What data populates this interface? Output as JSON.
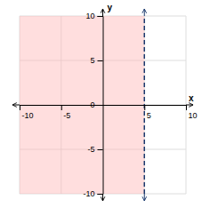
{
  "chart_data": {
    "type": "line",
    "xlabel": "x",
    "ylabel": "y",
    "xlim": [
      -10,
      10
    ],
    "ylim": [
      -10,
      10
    ],
    "xticks": [
      -10,
      -5,
      5,
      10
    ],
    "yticks": [
      -10,
      -5,
      0,
      5,
      10
    ],
    "grid": true,
    "x": [
      5,
      5
    ],
    "values": [
      -10,
      10
    ],
    "color": "#1c3a6e",
    "line_style": "dashed",
    "shade": {
      "x": [
        -10,
        5
      ],
      "color": "#ffb6b6"
    }
  }
}
